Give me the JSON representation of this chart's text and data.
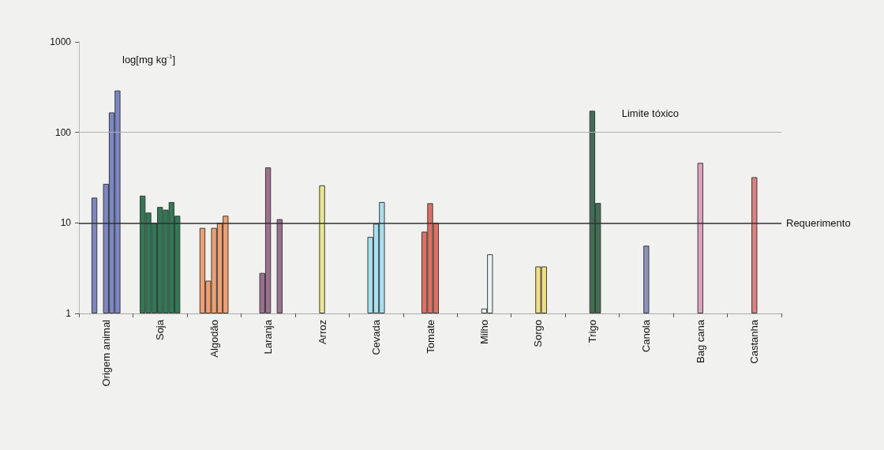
{
  "chart_data": {
    "type": "bar",
    "ylabel": "log[mg kg$^{-1}$]",
    "log": "y",
    "ylim": [
      1,
      1000
    ],
    "yticks": [
      1,
      10,
      100,
      1000
    ],
    "grid": false,
    "categories": [
      "Origem animal",
      "Soja",
      "Algodão",
      "Laranja",
      "Arroz",
      "Cevada",
      "Tomate",
      "Milho",
      "Sorgo",
      "Trigo",
      "Canola",
      "Bag cana",
      "Castanha"
    ],
    "series": [
      {
        "color": "#2f7a55",
        "values": [
          null,
          20,
          null,
          null,
          null,
          null,
          null,
          null,
          null,
          null,
          null,
          null,
          null
        ]
      },
      {
        "colors": [
          "#7b86c4",
          "#2f7a55",
          "#f0a070",
          "#9e7090",
          "#e8e890",
          "#a8e0f0",
          "#e07060",
          "#e8f4f4",
          "#f0e080",
          "#3f6e55",
          "#9090c0",
          "#e0a0c0",
          "#e08080"
        ],
        "values": [
          19,
          13,
          8.8,
          null,
          null,
          null,
          null,
          null,
          null,
          null,
          null,
          null,
          null
        ]
      },
      {
        "colors": [
          "#7b86c4",
          "#2f7a55",
          "#f0a070",
          "#9e7090",
          "#e8e890",
          "#a8e0f0",
          "#e07060",
          "#e8f4f4",
          "#f0e080",
          "#3f6e55",
          "#9090c0",
          "#e0a0c0",
          "#e08080"
        ],
        "values": [
          null,
          10,
          2.3,
          2.8,
          null,
          7,
          8,
          null,
          null,
          null,
          null,
          null,
          null
        ]
      },
      {
        "colors": [
          "#7b86c4",
          "#2f7a55",
          "#f0a070",
          "#9e7090",
          "#e8e890",
          "#a8e0f0",
          "#e07060",
          "#e8f4f4",
          "#f0e080",
          "#3f6e55",
          "#9090c0",
          "#e0a0c0",
          "#e08080"
        ],
        "values": [
          27,
          15,
          8.8,
          41,
          26,
          9.8,
          16.5,
          1.13,
          3.3,
          173,
          5.6,
          46,
          32
        ]
      },
      {
        "colors": [
          "#7b86c4",
          "#2f7a55",
          "#f0a070",
          "#9e7090",
          "#e8e890",
          "#a8e0f0",
          "#e07060",
          "#e8f4f4",
          "#f0e080",
          "#3f6e55",
          "#9090c0",
          "#e0a0c0",
          "#e08080"
        ],
        "values": [
          166,
          14,
          10,
          null,
          null,
          17,
          10,
          4.5,
          3.3,
          16.6,
          null,
          null,
          null
        ]
      },
      {
        "colors": [
          "#7b86c4",
          "#2f7a55",
          "#f0a070",
          "#9e7090",
          "#e8e890",
          "#a8e0f0",
          "#e07060",
          "#e8f4f4",
          "#f0e080",
          "#3f6e55",
          "#9090c0",
          "#e0a0c0",
          "#e08080"
        ],
        "values": [
          290,
          17,
          12,
          11,
          null,
          null,
          null,
          null,
          null,
          null,
          null,
          null,
          null
        ]
      },
      {
        "color": "#2f7a55",
        "values": [
          null,
          12,
          null,
          null,
          null,
          null,
          null,
          null,
          null,
          null,
          null,
          null,
          null
        ]
      }
    ],
    "ref_lines": [
      {
        "axis": "y",
        "value": 100,
        "label": "Limite tóxico",
        "color": "#b0b0b0",
        "line_style": "solid"
      },
      {
        "axis": "y",
        "value": 10,
        "label": "Requerimento",
        "color": "#303030",
        "line_style": "solid"
      }
    ]
  }
}
